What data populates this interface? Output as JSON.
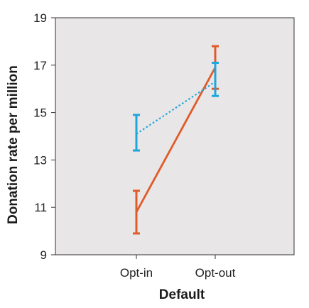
{
  "chart_data": {
    "type": "line",
    "title": "",
    "xlabel": "Default",
    "ylabel": "Donation rate per million",
    "categories": [
      "Opt-in",
      "Opt-out"
    ],
    "ylim": [
      9,
      19
    ],
    "yticks": [
      "9",
      "11",
      "13",
      "15",
      "17",
      "19"
    ],
    "background": "#e8e6e6",
    "grid": false,
    "series": [
      {
        "color": "#e05a2a",
        "line_style": "solid",
        "values": [
          10.8,
          16.9
        ],
        "error_low": [
          9.9,
          16.0
        ],
        "error_high": [
          11.7,
          17.8
        ]
      },
      {
        "color": "#1ea7dd",
        "line_style": "dotted",
        "values": [
          14.1,
          16.3
        ],
        "error_low": [
          13.4,
          15.7
        ],
        "error_high": [
          14.9,
          17.1
        ]
      }
    ]
  }
}
